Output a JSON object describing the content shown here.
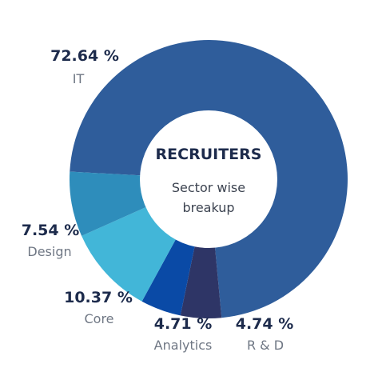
{
  "chart_data": {
    "type": "pie",
    "title": "RECRUITERS",
    "subtitle_lines": [
      "Sector wise",
      "breakup"
    ],
    "categories": [
      "IT",
      "R & D",
      "Analytics",
      "Core",
      "Design"
    ],
    "values": [
      72.64,
      4.74,
      4.71,
      10.37,
      7.54
    ],
    "value_labels": [
      "72.64 %",
      "4.74 %",
      "4.71 %",
      "10.37 %",
      "7.54 %"
    ],
    "colors": [
      "#2f5d9b",
      "#2e3566",
      "#0a4aa6",
      "#42b6d8",
      "#2e8dbb"
    ],
    "donut": true,
    "legend": "none"
  }
}
